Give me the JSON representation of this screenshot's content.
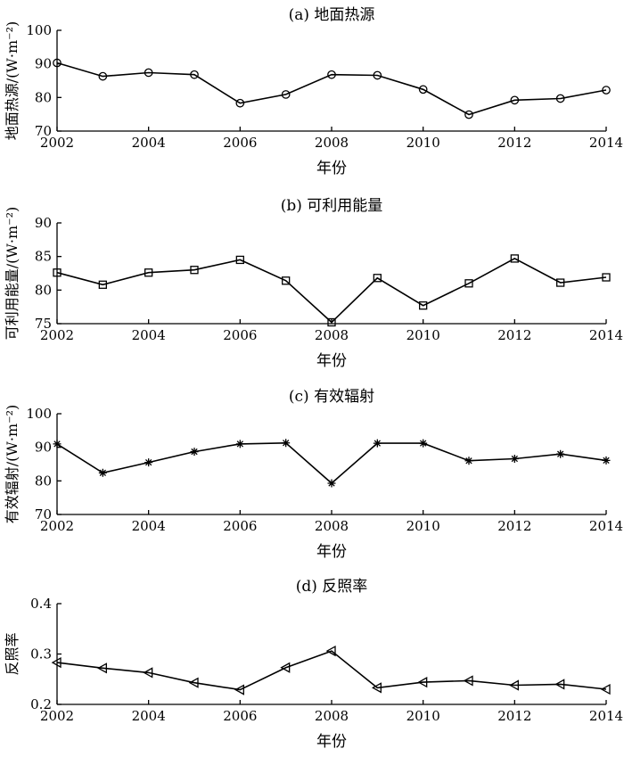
{
  "chart_data": [
    {
      "type": "line",
      "title": "(a) 地面热源",
      "xlabel": "年份",
      "ylabel": "地面热源/(W·m⁻²)",
      "x": [
        2002,
        2003,
        2004,
        2005,
        2006,
        2007,
        2008,
        2009,
        2010,
        2011,
        2012,
        2013,
        2014
      ],
      "xlim": [
        2002,
        2014
      ],
      "xticks": [
        "2002",
        "2004",
        "2006",
        "2008",
        "2010",
        "2012",
        "2014"
      ],
      "ylim": [
        70,
        100
      ],
      "yticks": [
        "70",
        "80",
        "90",
        "100"
      ],
      "marker": "circle",
      "series": [
        {
          "values": [
            90.3,
            86.3,
            87.4,
            86.8,
            78.3,
            80.9,
            86.8,
            86.6,
            82.4,
            74.9,
            79.2,
            79.7,
            82.2
          ]
        }
      ]
    },
    {
      "type": "line",
      "title": "(b) 可利用能量",
      "xlabel": "年份",
      "ylabel": "可利用能量/(W·m⁻²)",
      "x": [
        2002,
        2003,
        2004,
        2005,
        2006,
        2007,
        2008,
        2009,
        2010,
        2011,
        2012,
        2013,
        2014
      ],
      "xlim": [
        2002,
        2014
      ],
      "xticks": [
        "2002",
        "2004",
        "2006",
        "2008",
        "2010",
        "2012",
        "2014"
      ],
      "ylim": [
        75,
        90
      ],
      "yticks": [
        "75",
        "80",
        "85",
        "90"
      ],
      "marker": "square",
      "series": [
        {
          "values": [
            82.6,
            80.8,
            82.6,
            83.0,
            84.5,
            81.4,
            75.2,
            81.8,
            77.7,
            81.0,
            84.7,
            81.1,
            81.9
          ]
        }
      ]
    },
    {
      "type": "line",
      "title": "(c) 有效辐射",
      "xlabel": "年份",
      "ylabel": "有效辐射/(W·m⁻²)",
      "x": [
        2002,
        2003,
        2004,
        2005,
        2006,
        2007,
        2008,
        2009,
        2010,
        2011,
        2012,
        2013,
        2014
      ],
      "xlim": [
        2002,
        2014
      ],
      "xticks": [
        "2002",
        "2004",
        "2006",
        "2008",
        "2010",
        "2012",
        "2014"
      ],
      "ylim": [
        70,
        100
      ],
      "yticks": [
        "70",
        "80",
        "90",
        "100"
      ],
      "marker": "star",
      "series": [
        {
          "values": [
            91.0,
            82.4,
            85.5,
            88.7,
            91.0,
            91.3,
            79.3,
            91.2,
            91.2,
            86.0,
            86.6,
            88.0,
            86.1
          ]
        }
      ]
    },
    {
      "type": "line",
      "title": "(d) 反照率",
      "xlabel": "年份",
      "ylabel": "反照率",
      "x": [
        2002,
        2003,
        2004,
        2005,
        2006,
        2007,
        2008,
        2009,
        2010,
        2011,
        2012,
        2013,
        2014
      ],
      "xlim": [
        2002,
        2014
      ],
      "xticks": [
        "2002",
        "2004",
        "2006",
        "2008",
        "2010",
        "2012",
        "2014"
      ],
      "ylim": [
        0.2,
        0.4
      ],
      "yticks": [
        "0.2",
        "0.3",
        "0.4"
      ],
      "marker": "triangle-left",
      "series": [
        {
          "values": [
            0.283,
            0.272,
            0.263,
            0.243,
            0.229,
            0.273,
            0.306,
            0.233,
            0.244,
            0.247,
            0.238,
            0.24,
            0.23
          ]
        }
      ]
    }
  ]
}
